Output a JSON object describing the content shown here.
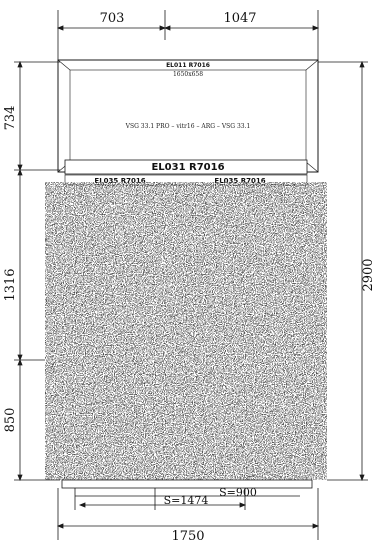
{
  "dimensions": {
    "top_left_width": "703",
    "top_right_width": "1047",
    "left_upper_height": "734",
    "left_middle_height": "1316",
    "left_lower_height": "850",
    "right_total_height": "2900",
    "bottom_total_width": "1750",
    "bottom_inner_width_s": "S=1474",
    "bottom_inner_width_s2": "S=900"
  },
  "panels": {
    "upper_title": "EL011 R7016",
    "upper_size": "1650x658",
    "upper_spec": "VSG 33.1 PRO – vitr16 – ARG – VSG 33.1",
    "transom_label": "EL031 R7016",
    "door_left_label": "EL035 R7016",
    "door_right_label": "EL035 R7016"
  },
  "colors": {
    "line": "#1a1a1a",
    "noise_dark": "#111111",
    "noise_light": "#ffffff"
  }
}
